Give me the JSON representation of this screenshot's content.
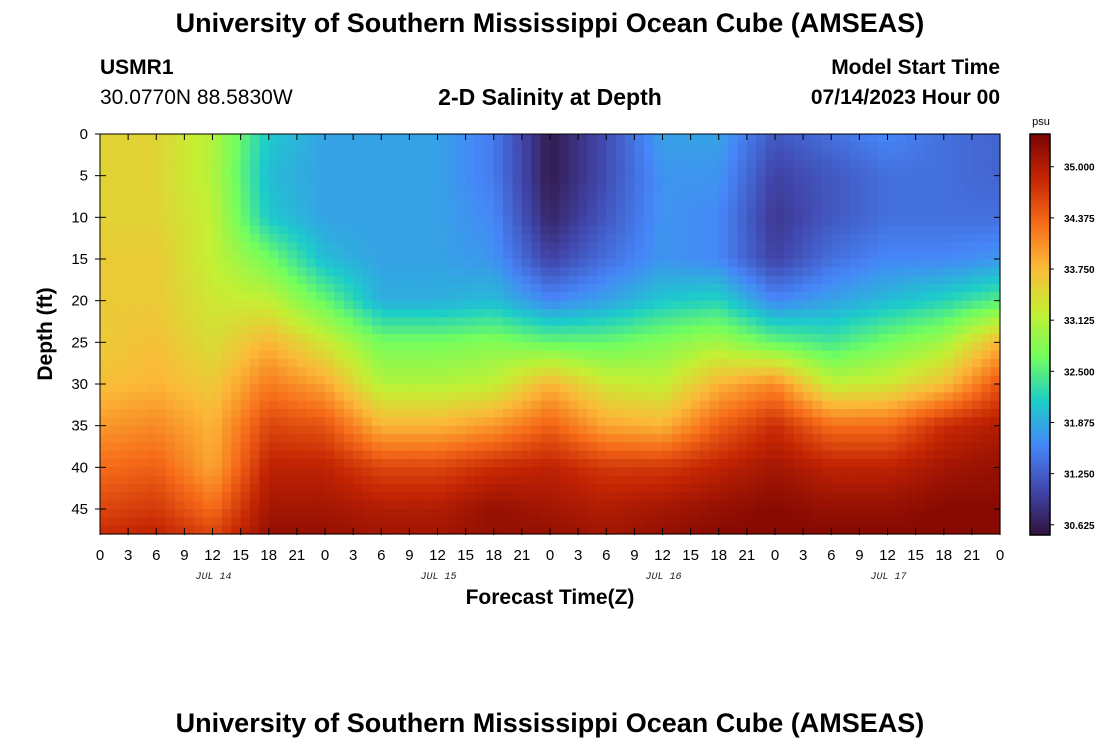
{
  "header": {
    "title": "University of Southern Mississippi Ocean Cube (AMSEAS)",
    "station_id": "USMR1",
    "coordinates": "30.0770N  88.5830W",
    "model_start_label": "Model Start Time",
    "model_start_value": "07/14/2023 Hour 00"
  },
  "footer": {
    "title": "University of Southern Mississippi Ocean Cube (AMSEAS)"
  },
  "colors": {
    "salinity_scale": [
      "#30123b",
      "#4146ab",
      "#4686f8",
      "#1ccdc9",
      "#72fe5e",
      "#c5ef33",
      "#fbb938",
      "#f66b19",
      "#c42503",
      "#7a0403"
    ]
  },
  "chart_data": {
    "type": "heatmap",
    "title": "2-D Salinity at Depth",
    "xlabel": "Forecast Time(Z)",
    "ylabel": "Depth (ft)",
    "x_unit": "hours from model start",
    "xlim": [
      0,
      96
    ],
    "ylim": [
      0,
      48
    ],
    "x_ticks": [
      0,
      3,
      6,
      9,
      12,
      15,
      18,
      21,
      24,
      27,
      30,
      33,
      36,
      39,
      42,
      45,
      48,
      51,
      54,
      57,
      60,
      63,
      66,
      69,
      72,
      75,
      78,
      81,
      84,
      87,
      90,
      93,
      96
    ],
    "x_tick_labels": [
      "0",
      "3",
      "6",
      "9",
      "12",
      "15",
      "18",
      "21",
      "0",
      "3",
      "6",
      "9",
      "12",
      "15",
      "18",
      "21",
      "0",
      "3",
      "6",
      "9",
      "12",
      "15",
      "18",
      "21",
      "0",
      "3",
      "6",
      "9",
      "12",
      "15",
      "18",
      "21",
      "0"
    ],
    "day_labels": [
      {
        "label": "JUL 14",
        "hour": 12
      },
      {
        "label": "JUL 15",
        "hour": 36
      },
      {
        "label": "JUL 16",
        "hour": 60
      },
      {
        "label": "JUL 17",
        "hour": 84
      }
    ],
    "y_ticks": [
      0,
      5,
      10,
      15,
      20,
      25,
      30,
      35,
      40,
      45
    ],
    "y_tick_labels": [
      "0",
      "5",
      "10",
      "15",
      "20",
      "25",
      "30",
      "35",
      "40",
      "45"
    ],
    "colorbar": {
      "unit": "psu",
      "range": [
        30.5,
        35.4
      ],
      "ticks": [
        35.0,
        34.375,
        33.75,
        33.125,
        32.5,
        31.875,
        31.25,
        30.625
      ],
      "tick_labels": [
        "35.000",
        "34.375",
        "33.750",
        "33.125",
        "32.500",
        "31.875",
        "31.250",
        "30.625"
      ]
    },
    "grid_x": [
      0,
      6,
      12,
      18,
      24,
      30,
      36,
      42,
      48,
      54,
      60,
      66,
      72,
      78,
      84,
      90,
      96
    ],
    "grid_y": [
      0,
      5,
      10,
      15,
      20,
      25,
      30,
      35,
      40,
      45,
      48
    ],
    "values": [
      [
        33.5,
        33.5,
        33.1,
        32.1,
        31.8,
        31.8,
        31.8,
        31.5,
        30.6,
        31.1,
        31.8,
        31.8,
        31.2,
        31.4,
        31.6,
        31.4,
        31.3
      ],
      [
        33.5,
        33.5,
        33.1,
        32.0,
        31.8,
        31.8,
        31.8,
        31.5,
        30.6,
        31.1,
        31.7,
        31.7,
        31.0,
        31.2,
        31.4,
        31.4,
        31.3
      ],
      [
        33.5,
        33.5,
        33.2,
        32.1,
        31.8,
        31.8,
        31.8,
        31.6,
        30.7,
        31.2,
        31.7,
        31.6,
        30.9,
        31.2,
        31.4,
        31.4,
        31.4
      ],
      [
        33.6,
        33.6,
        33.2,
        32.7,
        32.0,
        31.8,
        31.8,
        31.7,
        31.0,
        31.4,
        31.7,
        31.6,
        31.0,
        31.4,
        31.6,
        31.6,
        31.7
      ],
      [
        33.6,
        33.6,
        33.3,
        33.2,
        32.6,
        31.9,
        31.9,
        32.0,
        31.6,
        31.8,
        32.1,
        32.2,
        31.6,
        31.8,
        32.0,
        32.2,
        32.5
      ],
      [
        33.6,
        33.7,
        33.4,
        33.8,
        33.3,
        32.7,
        32.7,
        32.8,
        32.6,
        32.6,
        32.8,
        33.0,
        32.6,
        32.4,
        32.7,
        33.0,
        33.8
      ],
      [
        33.7,
        33.8,
        33.6,
        34.2,
        33.9,
        33.1,
        33.1,
        33.2,
        33.8,
        33.3,
        33.2,
        33.8,
        34.1,
        33.2,
        33.3,
        33.7,
        34.5
      ],
      [
        34.0,
        34.1,
        33.8,
        34.6,
        34.5,
        33.8,
        33.8,
        34.0,
        34.4,
        33.9,
        33.8,
        34.4,
        34.8,
        34.3,
        34.3,
        34.8,
        35.0
      ],
      [
        34.3,
        34.4,
        33.9,
        34.9,
        34.9,
        34.6,
        34.6,
        34.8,
        34.9,
        34.7,
        34.7,
        34.9,
        35.1,
        34.9,
        34.9,
        35.1,
        35.2
      ],
      [
        34.6,
        34.7,
        34.3,
        35.1,
        35.1,
        35.0,
        35.0,
        35.2,
        35.1,
        35.0,
        35.1,
        35.2,
        35.3,
        35.2,
        35.2,
        35.3,
        35.3
      ],
      [
        34.8,
        34.9,
        34.6,
        35.2,
        35.2,
        35.1,
        35.1,
        35.2,
        35.2,
        35.1,
        35.2,
        35.3,
        35.3,
        35.3,
        35.3,
        35.3,
        35.3
      ]
    ]
  }
}
